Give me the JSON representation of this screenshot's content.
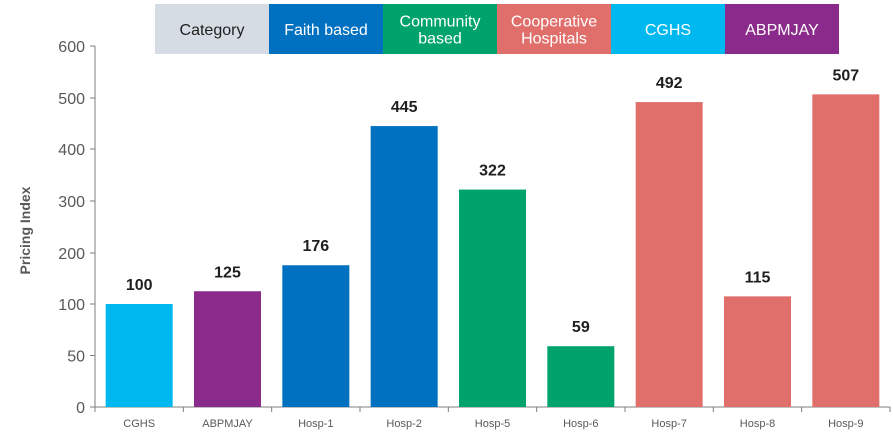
{
  "chart_data": {
    "type": "bar",
    "title": "",
    "xlabel": "",
    "ylabel": "Pricing Index",
    "ylim": [
      0,
      600
    ],
    "yticks": [
      0,
      50,
      100,
      200,
      300,
      400,
      500,
      600
    ],
    "grid": false,
    "legend_position": "top",
    "categories": [
      "CGHS",
      "ABPMJAY",
      "Hosp-1",
      "Hosp-2",
      "Hosp-5",
      "Hosp-6",
      "Hosp-7",
      "Hosp-8",
      "Hosp-9"
    ],
    "values": [
      100,
      125,
      176,
      445,
      322,
      59,
      492,
      115,
      507
    ],
    "data_labels": [
      "100",
      "125",
      "176",
      "445",
      "322",
      "59",
      "492",
      "115",
      "507"
    ],
    "bar_groups": [
      "CGHS",
      "ABPMJAY",
      "Faith based",
      "Faith based",
      "Community based",
      "Community based",
      "Cooperative Hospitals",
      "Cooperative Hospitals",
      "Cooperative Hospitals"
    ]
  },
  "legend": {
    "items": [
      {
        "key": "category",
        "lines": [
          "Category"
        ],
        "color": "#d6dce4",
        "text_color": "#1f1f1f"
      },
      {
        "key": "faith-based",
        "lines": [
          "Faith based"
        ],
        "color": "#0070c0",
        "text_color": "#ffffff"
      },
      {
        "key": "community-based",
        "lines": [
          "Community",
          "based"
        ],
        "color": "#00a36c",
        "text_color": "#ffffff"
      },
      {
        "key": "cooperative-hospitals",
        "lines": [
          "Cooperative",
          "Hospitals"
        ],
        "color": "#e06f6c",
        "text_color": "#ffffff"
      },
      {
        "key": "cghs",
        "lines": [
          "CGHS"
        ],
        "color": "#00b8f0",
        "text_color": "#ffffff"
      },
      {
        "key": "abpmjay",
        "lines": [
          "ABPMJAY"
        ],
        "color": "#8a2a8b",
        "text_color": "#ffffff"
      }
    ]
  },
  "colors": {
    "CGHS": "#00b8f0",
    "ABPMJAY": "#8a2a8b",
    "Faith based": "#0070c0",
    "Community based": "#00a36c",
    "Cooperative Hospitals": "#e06f6c",
    "axis": "#7f7f7f"
  }
}
